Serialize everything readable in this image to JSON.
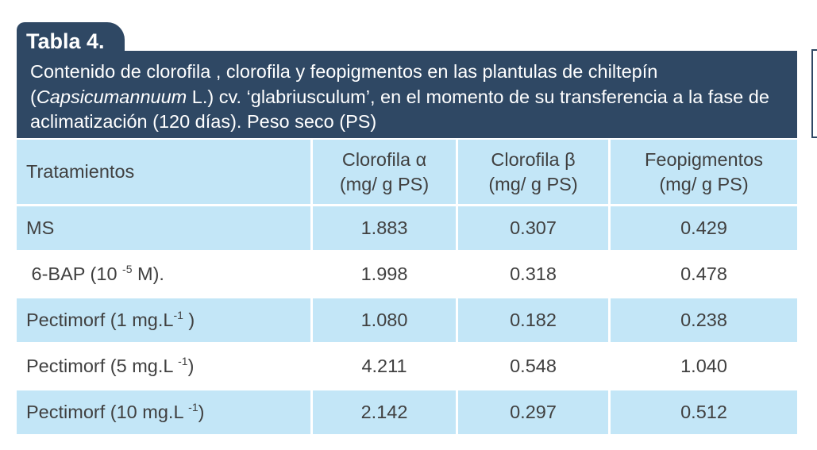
{
  "title": "Tabla 4.",
  "caption": {
    "part1": "Contenido de clorofila  , clorofila  y feopigmentos en las plantulas de chiltepín (",
    "species": "Capsicumannuum",
    "part2": " L.) cv. ‘glabriusculum’, en el momento de su transferencia a la fase de aclimatización (120 días). Peso seco (PS)"
  },
  "columns": {
    "col1": "Tratamientos",
    "col2_line1": "Clorofila  α",
    "col2_line2": "(mg/ g PS)",
    "col3_line1": "Clorofila β",
    "col3_line2": "(mg/ g PS)",
    "col4_line1": "Feopigmentos",
    "col4_line2": "(mg/ g PS)"
  },
  "rows": [
    {
      "name": "MS",
      "sup": "",
      "suffix": "",
      "a": "1.883",
      "b": "0.307",
      "f": "0.429"
    },
    {
      "name": " 6-BAP (10 ",
      "sup": "-5",
      "suffix": " M).",
      "a": "1.998",
      "b": "0.318",
      "f": "0.478"
    },
    {
      "name": "Pectimorf (1 mg.L",
      "sup": "-1",
      "suffix": " )",
      "a": "1.080",
      "b": "0.182",
      "f": "0.238"
    },
    {
      "name": "Pectimorf (5 mg.L ",
      "sup": "-1",
      "suffix": ")",
      "a": "4.211",
      "b": "0.548",
      "f": "1.040"
    },
    {
      "name": "Pectimorf (10 mg.L ",
      "sup": "-1",
      "suffix": ")",
      "a": "2.142",
      "b": "0.297",
      "f": "0.512"
    }
  ],
  "colors": {
    "header": "#2f4864",
    "row_highlight": "#c3e6f7",
    "text": "#404040"
  }
}
